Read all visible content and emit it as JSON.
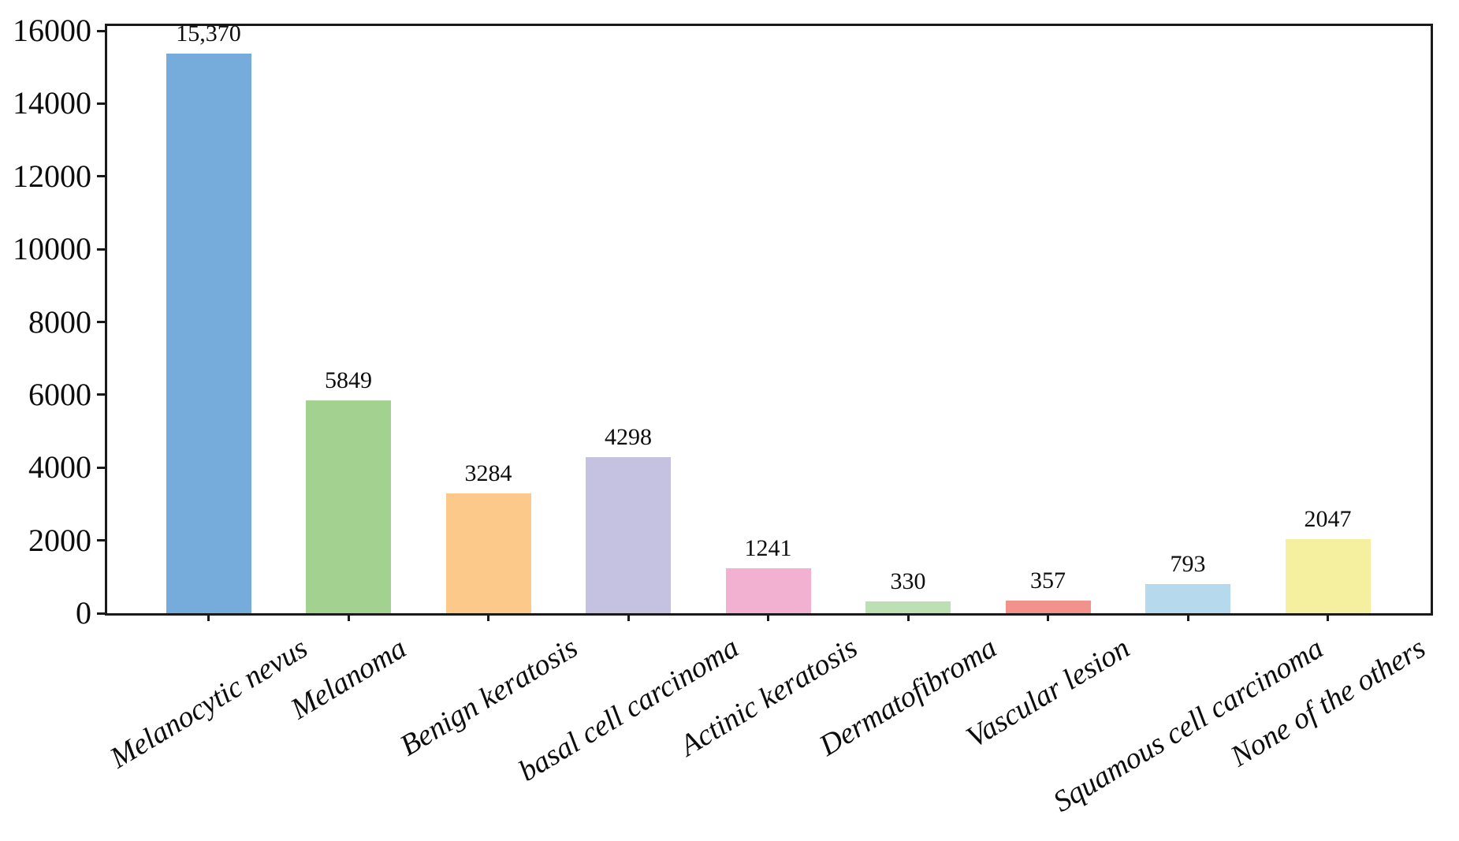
{
  "figure": {
    "background_color": "#ffffff",
    "axis_color": "#1a1a1a",
    "text_color": "#0d0d0d"
  },
  "chart_data": {
    "type": "bar",
    "title": "",
    "xlabel": "",
    "ylabel": "",
    "categories": [
      "Melanocytic nevus",
      "Melanoma",
      "Benign keratosis",
      "basal cell carcinoma",
      "Actinic keratosis",
      "Dermatofibroma",
      "Vascular lesion",
      "Squamous cell carcinoma",
      "None of the others"
    ],
    "values": [
      15370,
      5849,
      3284,
      4298,
      1241,
      330,
      357,
      793,
      2047
    ],
    "bar_value_labels": [
      "15,370",
      "5849",
      "3284",
      "4298",
      "1241",
      "330",
      "357",
      "793",
      "2047"
    ],
    "bar_colors": [
      "#76ACDB",
      "#A3D18F",
      "#FCC98B",
      "#C4C1E1",
      "#F2B1D1",
      "#BCE0B4",
      "#F2928D",
      "#B6D9EE",
      "#F5F0A0"
    ],
    "yticks": [
      0,
      2000,
      4000,
      6000,
      8000,
      10000,
      12000,
      14000,
      16000
    ],
    "ytick_labels": [
      "0",
      "2000",
      "4000",
      "6000",
      "8000",
      "10000",
      "12000",
      "14000",
      "16000"
    ],
    "ylim": [
      0,
      16130
    ],
    "grid": false,
    "legend": "none",
    "xtick_rotation_deg": 31
  }
}
